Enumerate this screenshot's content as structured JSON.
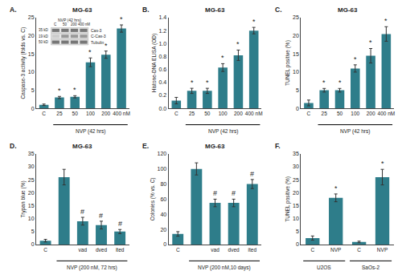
{
  "chart_data": [
    {
      "type": "bar",
      "title": "MG-63",
      "label": "A.",
      "ylabel": "Caspase-3 activity (folds vs. C)",
      "categories": [
        "C",
        "25",
        "50",
        "100",
        "200",
        "400 nM"
      ],
      "values": [
        1.0,
        3.0,
        3.2,
        12.7,
        14.8,
        22.0
      ],
      "errors": [
        0.2,
        0.3,
        0.3,
        1.2,
        1.0,
        1.0
      ],
      "color": "#2e7d8a",
      "grid": false,
      "ylim": [
        0,
        25
      ],
      "yticks": [
        0,
        5,
        10,
        15,
        20,
        25
      ],
      "annotations": [
        {
          "text": "*",
          "category": 1
        },
        {
          "text": "*",
          "category": 2
        },
        {
          "text": "*",
          "category": 3
        },
        {
          "text": "*",
          "category": 4
        },
        {
          "text": "*",
          "category": 5
        },
        {
          "text": "NVP (42 hrs)",
          "from": 1,
          "to": 5
        }
      ],
      "inset": {
        "title": "NVP (42 hrs)",
        "categories": [
          "C",
          "50",
          "200",
          "400 nM"
        ],
        "color": "#e5e5e5",
        "series": [
          {
            "name": "Cas-3",
            "label": "35 kD",
            "colors": [
              "#777777",
              "#777777",
              "#777777",
              "#777777"
            ]
          },
          {
            "name": "C-Cas-3",
            "label": "19 kD",
            "colors": [
              "#cccccc",
              "#999999",
              "#999999",
              "#999999"
            ]
          },
          {
            "name": "Tubulin",
            "label": "50 kD",
            "colors": [
              "#777777",
              "#777777",
              "#777777",
              "#777777"
            ]
          }
        ]
      }
    },
    {
      "type": "bar",
      "title": "MG-63",
      "label": "B.",
      "ylabel": "Histone-DNA ELISA (OD)",
      "categories": [
        "C",
        "25",
        "50",
        "100",
        "200",
        "400 nM"
      ],
      "values": [
        0.12,
        0.27,
        0.27,
        0.63,
        0.82,
        1.2
      ],
      "errors": [
        0.05,
        0.04,
        0.04,
        0.06,
        0.08,
        0.05
      ],
      "color": "#2e7d8a",
      "grid": false,
      "ylim": [
        0,
        1.4
      ],
      "yticks": [
        {
          "value": 0.0,
          "label": "0.0"
        },
        0.2,
        0.4,
        0.6,
        0.8,
        {
          "value": 1.0,
          "label": "1.0"
        },
        1.2,
        1.4
      ],
      "annotations": [
        {
          "text": "*",
          "category": 1
        },
        {
          "text": "*",
          "category": 2
        },
        {
          "text": "*",
          "category": 3
        },
        {
          "text": "*",
          "category": 4
        },
        {
          "text": "*",
          "category": 5
        },
        {
          "text": "NVP (42 hrs)",
          "from": 1,
          "to": 5
        }
      ]
    },
    {
      "type": "bar",
      "title": "MG-63",
      "label": "C.",
      "ylabel": "TUNEL positive (%)",
      "categories": [
        "C",
        "25",
        "50",
        "100",
        "200",
        "400 nM"
      ],
      "values": [
        1.5,
        5.0,
        5.0,
        11.0,
        14.5,
        20.5
      ],
      "errors": [
        0.8,
        0.5,
        0.5,
        1.0,
        2.0,
        2.0
      ],
      "color": "#2e7d8a",
      "grid": false,
      "ylim": [
        0,
        25
      ],
      "yticks": [
        0,
        5,
        10,
        15,
        20,
        25
      ],
      "annotations": [
        {
          "text": "*",
          "category": 1
        },
        {
          "text": "*",
          "category": 2
        },
        {
          "text": "*",
          "category": 3
        },
        {
          "text": "*",
          "category": 4
        },
        {
          "text": "*",
          "category": 5
        },
        {
          "text": "NVP (42 hrs)",
          "from": 1,
          "to": 5
        }
      ]
    },
    {
      "type": "bar",
      "title": "MG-63",
      "label": "D.",
      "ylabel": "Trypan blue (%)",
      "categories": [
        "C",
        null,
        "vad",
        "dved",
        "ited"
      ],
      "values": [
        1.5,
        26.0,
        9.0,
        7.5,
        5.0
      ],
      "errors": [
        0.5,
        3.0,
        1.5,
        1.5,
        0.8
      ],
      "color": "#2e7d8a",
      "grid": false,
      "ylim": [
        0,
        35
      ],
      "yticks": [
        0,
        5,
        10,
        15,
        20,
        25,
        30,
        35
      ],
      "annotations": [
        {
          "text": "#",
          "category": 2
        },
        {
          "text": "#",
          "category": 3
        },
        {
          "text": "#",
          "category": 4
        },
        {
          "text": "NVP (200 nM, 72 hrs)",
          "from": 1,
          "to": 4
        }
      ]
    },
    {
      "type": "bar",
      "title": "MG-63",
      "label": "E.",
      "ylabel": "Colonies (% vs. C)",
      "categories": [
        "C",
        null,
        "vad",
        "dved",
        "ited"
      ],
      "values": [
        14.0,
        100.0,
        55.0,
        55.0,
        80.0
      ],
      "errors": [
        3.0,
        8.0,
        5.0,
        5.0,
        6.0
      ],
      "color": "#2e7d8a",
      "grid": false,
      "ylim": [
        0,
        120
      ],
      "yticks": [
        0,
        20,
        40,
        60,
        80,
        100,
        120
      ],
      "annotations": [
        {
          "text": "#",
          "category": 2
        },
        {
          "text": "#",
          "category": 3
        },
        {
          "text": "#",
          "category": 4
        },
        {
          "text": "NVP (200 nM,10 days)",
          "from": 1,
          "to": 4
        }
      ]
    },
    {
      "type": "bar",
      "label": "F.",
      "ylabel": "TUNEL positive (%)",
      "categories": [
        "C",
        "NVP",
        "C",
        "NVP"
      ],
      "values": [
        2.5,
        18.0,
        1.0,
        26.0
      ],
      "errors": [
        0.8,
        1.5,
        0.3,
        3.0
      ],
      "color": "#2e7d8a",
      "grid": false,
      "ylim": [
        0,
        35
      ],
      "yticks": [
        0,
        5,
        10,
        15,
        20,
        25,
        30,
        35
      ],
      "annotations": [
        {
          "text": "*",
          "category": 1
        },
        {
          "text": "*",
          "category": 3
        },
        {
          "text": "U2OS",
          "from": 0,
          "to": 1
        },
        {
          "text": "SaOs-2",
          "from": 2,
          "to": 3
        }
      ]
    }
  ]
}
